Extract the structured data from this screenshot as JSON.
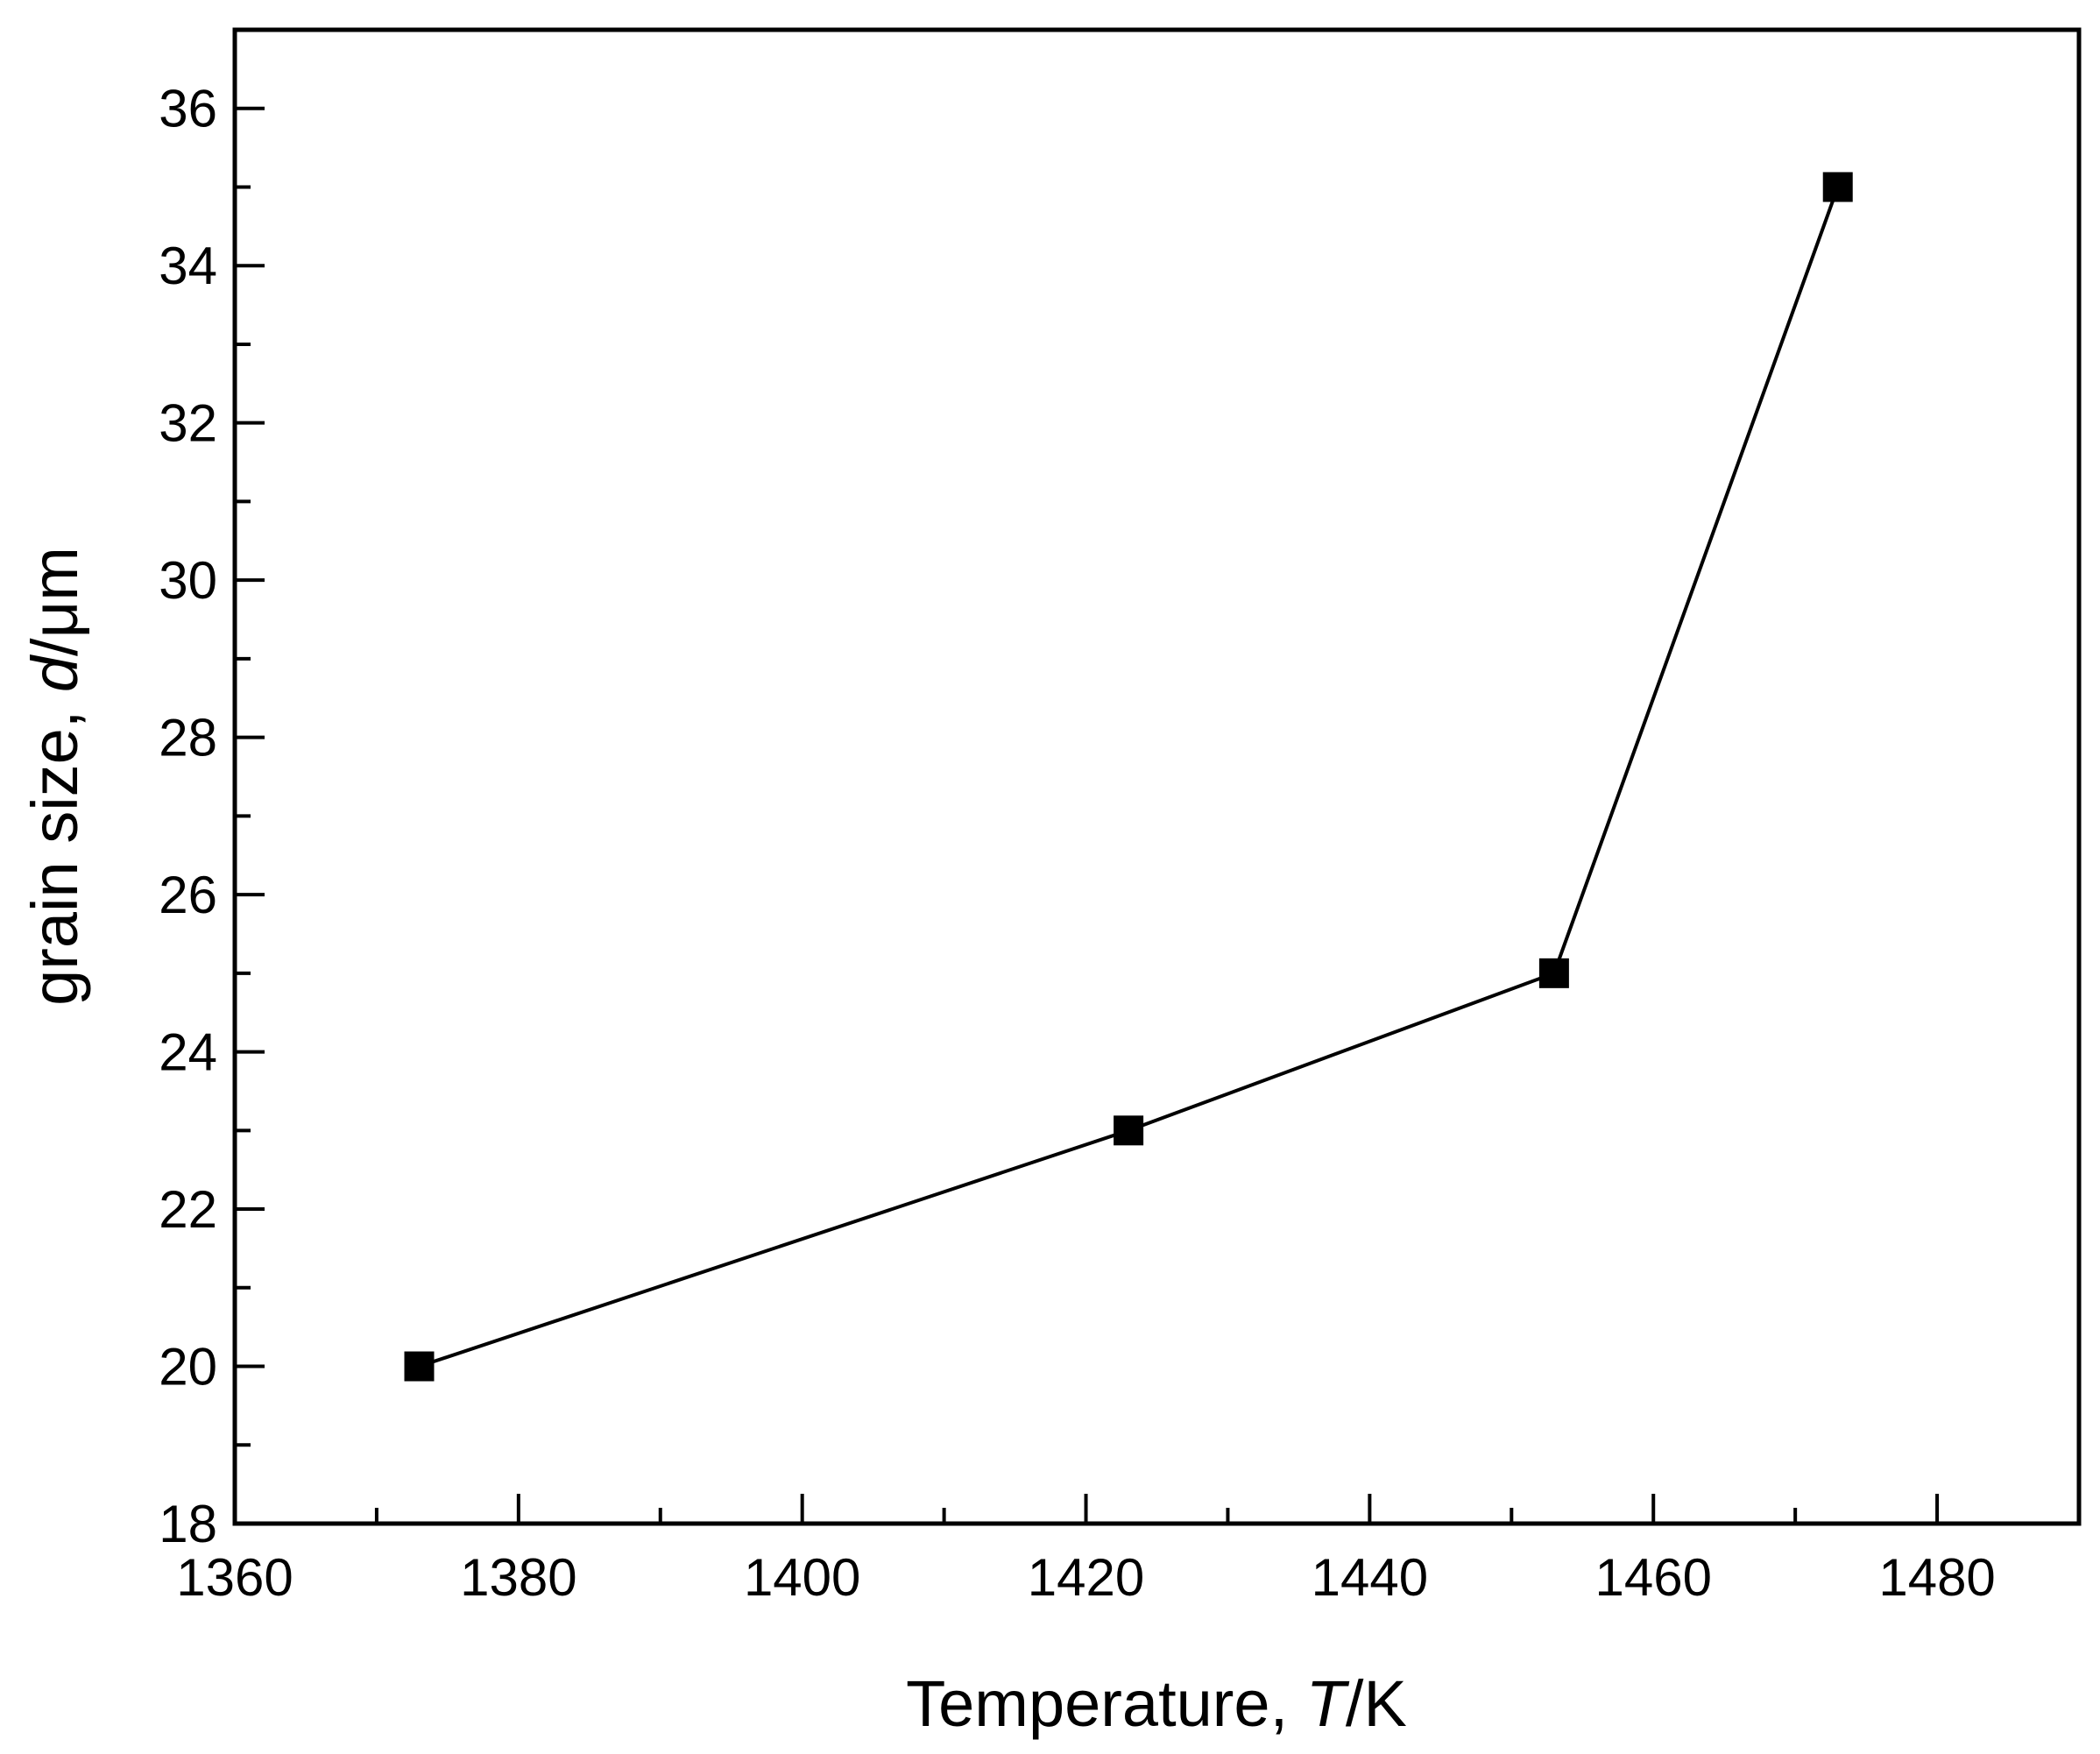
{
  "chart_data": {
    "type": "line",
    "x": [
      1373,
      1423,
      1453,
      1473
    ],
    "series": [
      {
        "values": [
          20,
          23,
          25,
          35
        ],
        "marker": "square",
        "color": "#000000"
      }
    ],
    "xlabel": {
      "prefix": "Temperature, ",
      "variable": "T",
      "unit": "/K"
    },
    "ylabel": {
      "prefix": "grain size, ",
      "variable": "d",
      "unit": "/μm"
    },
    "xlim": [
      1360,
      1490
    ],
    "ylim": [
      18,
      37
    ],
    "xticks": [
      1360,
      1380,
      1400,
      1420,
      1440,
      1460,
      1480
    ],
    "yticks": [
      18,
      20,
      22,
      24,
      26,
      28,
      30,
      32,
      34,
      36
    ],
    "x_minor_step": 10,
    "y_minor_step": 1,
    "grid": false,
    "legend": "none"
  }
}
